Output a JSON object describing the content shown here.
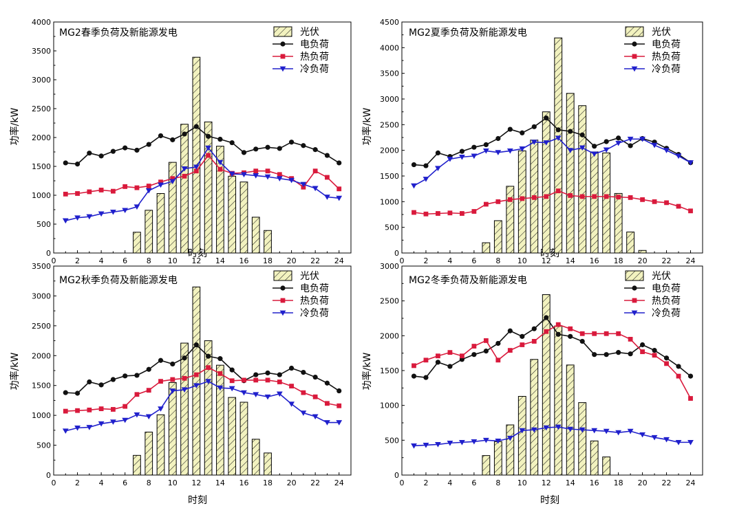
{
  "chart_data": [
    {
      "type": "bar",
      "title": "MG2春季负荷及新能源发电",
      "xlabel": "时刻",
      "ylabel": "功率/kW",
      "xlim": [
        0,
        25
      ],
      "ylim": [
        0,
        4000
      ],
      "xticks": [
        0,
        2,
        4,
        6,
        8,
        10,
        12,
        14,
        16,
        18,
        20,
        22,
        24
      ],
      "yticks": [
        0,
        500,
        1000,
        1500,
        2000,
        2500,
        3000,
        3500,
        4000
      ],
      "legend_position": "top-right",
      "bars": {
        "name": "光伏",
        "x": [
          7,
          8,
          9,
          10,
          11,
          12,
          13,
          14,
          15,
          16,
          17,
          18
        ],
        "values": [
          360,
          740,
          1030,
          1570,
          2230,
          3390,
          2270,
          1850,
          1330,
          1230,
          620,
          390
        ]
      },
      "series": [
        {
          "name": "电负荷",
          "values": [
            1560,
            1540,
            1730,
            1680,
            1760,
            1820,
            1780,
            1880,
            2030,
            1960,
            2060,
            2190,
            2020,
            1970,
            1910,
            1740,
            1800,
            1830,
            1810,
            1920,
            1860,
            1790,
            1690,
            1560
          ]
        },
        {
          "name": "热负荷",
          "values": [
            1020,
            1030,
            1060,
            1090,
            1070,
            1150,
            1130,
            1160,
            1230,
            1290,
            1330,
            1420,
            1690,
            1450,
            1380,
            1390,
            1420,
            1420,
            1360,
            1290,
            1140,
            1420,
            1310,
            1110
          ]
        },
        {
          "name": "冷负荷",
          "values": [
            560,
            610,
            630,
            680,
            710,
            740,
            800,
            1080,
            1180,
            1240,
            1460,
            1490,
            1820,
            1570,
            1370,
            1360,
            1340,
            1320,
            1290,
            1260,
            1190,
            1120,
            970,
            950
          ]
        }
      ]
    },
    {
      "type": "bar",
      "title": "MG2夏季负荷及新能源发电",
      "xlabel": "时刻",
      "ylabel": "功率/kW",
      "xlim": [
        0,
        25
      ],
      "ylim": [
        0,
        4500
      ],
      "xticks": [
        0,
        2,
        4,
        6,
        8,
        10,
        12,
        14,
        16,
        18,
        20,
        22,
        24
      ],
      "yticks": [
        0,
        500,
        1000,
        1500,
        2000,
        2500,
        3000,
        3500,
        4000,
        4500
      ],
      "legend_position": "top-right",
      "bars": {
        "name": "光伏",
        "x": [
          7,
          8,
          9,
          10,
          11,
          12,
          13,
          14,
          15,
          16,
          17,
          18,
          19,
          20
        ],
        "values": [
          200,
          630,
          1300,
          1990,
          2200,
          2750,
          4190,
          3110,
          2870,
          1970,
          1950,
          1160,
          410,
          50
        ]
      },
      "series": [
        {
          "name": "电负荷",
          "values": [
            1720,
            1700,
            1950,
            1880,
            1980,
            2060,
            2110,
            2230,
            2410,
            2340,
            2460,
            2630,
            2400,
            2370,
            2300,
            2080,
            2170,
            2240,
            2090,
            2230,
            2160,
            2040,
            1920,
            1760
          ]
        },
        {
          "name": "热负荷",
          "values": [
            790,
            760,
            770,
            780,
            770,
            810,
            950,
            1000,
            1040,
            1060,
            1080,
            1100,
            1210,
            1120,
            1100,
            1100,
            1100,
            1090,
            1080,
            1040,
            1000,
            980,
            910,
            820
          ]
        },
        {
          "name": "冷负荷",
          "values": [
            1310,
            1440,
            1650,
            1830,
            1870,
            1890,
            1990,
            1960,
            1990,
            2030,
            2160,
            2150,
            2240,
            2000,
            2050,
            1930,
            2010,
            2140,
            2220,
            2220,
            2100,
            2000,
            1890,
            1760
          ]
        }
      ]
    },
    {
      "type": "bar",
      "title": "MG2秋季负荷及新能源发电",
      "xlabel": "时刻",
      "ylabel": "功率/kW",
      "xlim": [
        0,
        25
      ],
      "ylim": [
        0,
        3500
      ],
      "xticks": [
        0,
        2,
        4,
        6,
        8,
        10,
        12,
        14,
        16,
        18,
        20,
        22,
        24
      ],
      "yticks": [
        0,
        500,
        1000,
        1500,
        2000,
        2500,
        3000,
        3500
      ],
      "legend_position": "top-right",
      "bars": {
        "name": "光伏",
        "x": [
          7,
          8,
          9,
          10,
          11,
          12,
          13,
          14,
          15,
          16,
          17,
          18
        ],
        "values": [
          330,
          720,
          1010,
          1550,
          2210,
          3150,
          2250,
          1840,
          1300,
          1220,
          600,
          370
        ]
      },
      "series": [
        {
          "name": "电负荷",
          "values": [
            1380,
            1370,
            1560,
            1510,
            1600,
            1660,
            1670,
            1770,
            1920,
            1860,
            1960,
            2180,
            1990,
            1950,
            1760,
            1580,
            1680,
            1710,
            1680,
            1790,
            1720,
            1640,
            1540,
            1410
          ]
        },
        {
          "name": "热负荷",
          "values": [
            1070,
            1080,
            1090,
            1110,
            1100,
            1150,
            1350,
            1420,
            1570,
            1600,
            1620,
            1680,
            1800,
            1700,
            1580,
            1590,
            1590,
            1590,
            1560,
            1490,
            1380,
            1310,
            1200,
            1160
          ]
        },
        {
          "name": "冷负荷",
          "values": [
            740,
            790,
            800,
            860,
            890,
            920,
            1010,
            980,
            1110,
            1410,
            1430,
            1500,
            1570,
            1460,
            1450,
            1380,
            1350,
            1310,
            1360,
            1190,
            1040,
            980,
            880,
            880
          ]
        }
      ]
    },
    {
      "type": "bar",
      "title": "MG2冬季负荷及新能源发电",
      "xlabel": "时刻",
      "ylabel": "功率/kW",
      "xlim": [
        0,
        25
      ],
      "ylim": [
        0,
        3000
      ],
      "xticks": [
        0,
        2,
        4,
        6,
        8,
        10,
        12,
        14,
        16,
        18,
        20,
        22,
        24
      ],
      "yticks": [
        0,
        500,
        1000,
        1500,
        2000,
        2500,
        3000
      ],
      "legend_position": "top-right",
      "bars": {
        "name": "光伏",
        "x": [
          7,
          8,
          9,
          10,
          11,
          12,
          13,
          14,
          15,
          16,
          17
        ],
        "values": [
          280,
          480,
          720,
          1130,
          1660,
          2590,
          2140,
          1580,
          1040,
          490,
          260
        ]
      },
      "series": [
        {
          "name": "电负荷",
          "values": [
            1420,
            1400,
            1620,
            1560,
            1660,
            1730,
            1780,
            1890,
            2070,
            1990,
            2100,
            2260,
            2020,
            1990,
            1920,
            1730,
            1730,
            1760,
            1740,
            1870,
            1790,
            1680,
            1560,
            1420
          ]
        },
        {
          "name": "热负荷",
          "values": [
            1570,
            1650,
            1710,
            1760,
            1710,
            1850,
            1930,
            1650,
            1790,
            1870,
            1920,
            2060,
            2160,
            2100,
            2030,
            2030,
            2030,
            2030,
            1950,
            1770,
            1720,
            1600,
            1420,
            1100
          ]
        },
        {
          "name": "冷负荷",
          "values": [
            420,
            430,
            440,
            460,
            470,
            480,
            500,
            490,
            530,
            640,
            650,
            680,
            690,
            660,
            650,
            640,
            630,
            610,
            630,
            580,
            540,
            510,
            470,
            470
          ]
        }
      ]
    }
  ]
}
